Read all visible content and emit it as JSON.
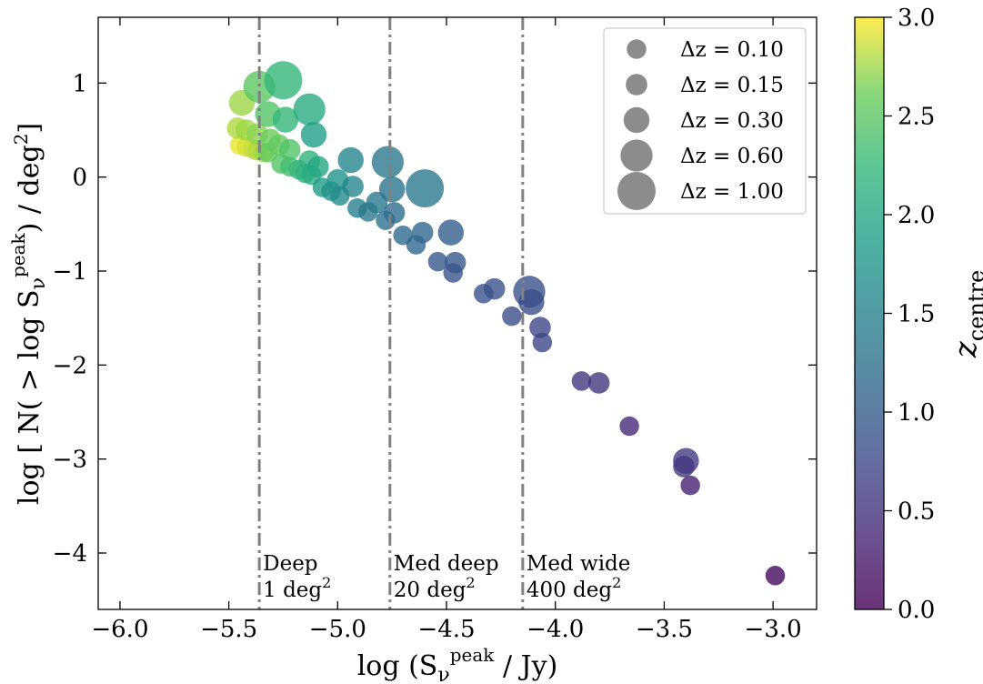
{
  "chart_data": {
    "type": "scatter",
    "xlabel_main": "log (S",
    "xlabel_sub": "ν",
    "xlabel_sup": "peak",
    "xlabel_tail": " / Jy)",
    "ylabel_main": "log [ N( > log S",
    "ylabel_sub": "ν",
    "ylabel_sup": "peak",
    "ylabel_tail": ") / deg",
    "ylabel_exp": "2",
    "ylabel_close": "]",
    "xlim": [
      -6.1,
      -2.8
    ],
    "ylim": [
      -4.6,
      1.7
    ],
    "x_ticks": [
      -6.0,
      -5.5,
      -5.0,
      -4.5,
      -4.0,
      -3.5,
      -3.0
    ],
    "x_tick_labels": [
      "−6.0",
      "−5.5",
      "−5.0",
      "−4.5",
      "−4.0",
      "−3.5",
      "−3.0"
    ],
    "y_ticks": [
      1,
      0,
      -1,
      -2,
      -3,
      -4
    ],
    "y_tick_labels": [
      "1",
      "0",
      "−1",
      "−2",
      "−3",
      "−4"
    ],
    "grid": false,
    "legend_placement": "top-right",
    "legend": [
      {
        "label": "Δz = 0.10",
        "dz": 0.1
      },
      {
        "label": "Δz = 0.15",
        "dz": 0.15
      },
      {
        "label": "Δz = 0.30",
        "dz": 0.3
      },
      {
        "label": "Δz = 0.60",
        "dz": 0.6
      },
      {
        "label": "Δz = 1.00",
        "dz": 1.0
      }
    ],
    "colorbar": {
      "label_main": "z",
      "label_sub": "centre",
      "range": [
        0.0,
        3.0
      ],
      "ticks": [
        0.0,
        0.5,
        1.0,
        1.5,
        2.0,
        2.5,
        3.0
      ],
      "tick_labels": [
        "0.0",
        "0.5",
        "1.0",
        "1.5",
        "2.0",
        "2.5",
        "3.0"
      ],
      "colormap": "viridis"
    },
    "survey_lines": [
      {
        "x": -5.36,
        "name": "Deep",
        "area": "1 deg",
        "exp": "2"
      },
      {
        "x": -4.76,
        "name": "Med deep",
        "area": "20 deg",
        "exp": "2"
      },
      {
        "x": -4.15,
        "name": "Med wide",
        "area": "400 deg",
        "exp": "2"
      }
    ],
    "points": [
      {
        "x": -5.45,
        "y": 0.34,
        "dz": 0.1,
        "z": 2.95
      },
      {
        "x": -5.42,
        "y": 0.32,
        "dz": 0.1,
        "z": 2.9
      },
      {
        "x": -5.39,
        "y": 0.3,
        "dz": 0.1,
        "z": 2.85
      },
      {
        "x": -5.37,
        "y": 0.28,
        "dz": 0.1,
        "z": 2.8
      },
      {
        "x": -5.34,
        "y": 0.26,
        "dz": 0.1,
        "z": 2.75
      },
      {
        "x": -5.46,
        "y": 0.52,
        "dz": 0.15,
        "z": 2.8
      },
      {
        "x": -5.42,
        "y": 0.5,
        "dz": 0.15,
        "z": 2.75
      },
      {
        "x": -5.37,
        "y": 0.46,
        "dz": 0.15,
        "z": 2.7
      },
      {
        "x": -5.44,
        "y": 0.79,
        "dz": 0.3,
        "z": 2.75
      },
      {
        "x": -5.36,
        "y": 0.96,
        "dz": 0.6,
        "z": 2.5
      },
      {
        "x": -5.25,
        "y": 1.03,
        "dz": 1.0,
        "z": 2.25
      },
      {
        "x": -5.32,
        "y": 0.67,
        "dz": 0.3,
        "z": 2.45
      },
      {
        "x": -5.31,
        "y": 0.4,
        "dz": 0.15,
        "z": 2.6
      },
      {
        "x": -5.27,
        "y": 0.34,
        "dz": 0.15,
        "z": 2.55
      },
      {
        "x": -5.22,
        "y": 0.29,
        "dz": 0.15,
        "z": 2.45
      },
      {
        "x": -5.32,
        "y": 0.26,
        "dz": 0.1,
        "z": 2.55
      },
      {
        "x": -5.26,
        "y": 0.14,
        "dz": 0.1,
        "z": 2.45
      },
      {
        "x": -5.22,
        "y": 0.11,
        "dz": 0.1,
        "z": 2.35
      },
      {
        "x": -5.18,
        "y": 0.08,
        "dz": 0.1,
        "z": 2.25
      },
      {
        "x": -5.15,
        "y": 0.04,
        "dz": 0.1,
        "z": 2.15
      },
      {
        "x": -5.13,
        "y": 0.17,
        "dz": 0.15,
        "z": 2.15
      },
      {
        "x": -5.12,
        "y": 0.02,
        "dz": 0.1,
        "z": 2.05
      },
      {
        "x": -5.09,
        "y": 0.11,
        "dz": 0.15,
        "z": 2.0
      },
      {
        "x": -5.24,
        "y": 0.61,
        "dz": 0.3,
        "z": 2.25
      },
      {
        "x": -5.13,
        "y": 0.72,
        "dz": 0.6,
        "z": 2.05
      },
      {
        "x": -5.11,
        "y": 0.45,
        "dz": 0.3,
        "z": 1.9
      },
      {
        "x": -5.07,
        "y": -0.11,
        "dz": 0.1,
        "z": 1.85
      },
      {
        "x": -5.03,
        "y": -0.15,
        "dz": 0.1,
        "z": 1.7
      },
      {
        "x": -5.0,
        "y": -0.03,
        "dz": 0.15,
        "z": 1.75
      },
      {
        "x": -4.99,
        "y": -0.2,
        "dz": 0.1,
        "z": 1.6
      },
      {
        "x": -4.94,
        "y": 0.18,
        "dz": 0.3,
        "z": 1.55
      },
      {
        "x": -4.93,
        "y": -0.1,
        "dz": 0.15,
        "z": 1.55
      },
      {
        "x": -4.91,
        "y": -0.33,
        "dz": 0.1,
        "z": 1.45
      },
      {
        "x": -4.86,
        "y": -0.37,
        "dz": 0.1,
        "z": 1.35
      },
      {
        "x": -4.82,
        "y": -0.27,
        "dz": 0.15,
        "z": 1.4
      },
      {
        "x": -4.78,
        "y": -0.46,
        "dz": 0.1,
        "z": 1.25
      },
      {
        "x": -4.77,
        "y": 0.16,
        "dz": 0.6,
        "z": 1.35
      },
      {
        "x": -4.75,
        "y": -0.13,
        "dz": 0.3,
        "z": 1.3
      },
      {
        "x": -4.74,
        "y": -0.38,
        "dz": 0.15,
        "z": 1.2
      },
      {
        "x": -4.6,
        "y": -0.12,
        "dz": 1.0,
        "z": 1.35
      },
      {
        "x": -4.7,
        "y": -0.62,
        "dz": 0.1,
        "z": 1.15
      },
      {
        "x": -4.64,
        "y": -0.72,
        "dz": 0.1,
        "z": 1.1
      },
      {
        "x": -4.61,
        "y": -0.59,
        "dz": 0.15,
        "z": 1.1
      },
      {
        "x": -4.48,
        "y": -0.59,
        "dz": 0.3,
        "z": 1.0
      },
      {
        "x": -4.54,
        "y": -0.9,
        "dz": 0.1,
        "z": 0.95
      },
      {
        "x": -4.46,
        "y": -0.91,
        "dz": 0.15,
        "z": 0.95
      },
      {
        "x": -4.47,
        "y": -1.02,
        "dz": 0.1,
        "z": 0.9
      },
      {
        "x": -4.33,
        "y": -1.24,
        "dz": 0.1,
        "z": 0.85
      },
      {
        "x": -4.28,
        "y": -1.19,
        "dz": 0.15,
        "z": 0.85
      },
      {
        "x": -4.2,
        "y": -1.48,
        "dz": 0.1,
        "z": 0.8
      },
      {
        "x": -4.12,
        "y": -1.22,
        "dz": 0.6,
        "z": 0.85
      },
      {
        "x": -4.11,
        "y": -1.33,
        "dz": 0.3,
        "z": 0.8
      },
      {
        "x": -4.07,
        "y": -1.6,
        "dz": 0.15,
        "z": 0.7
      },
      {
        "x": -4.06,
        "y": -1.76,
        "dz": 0.1,
        "z": 0.7
      },
      {
        "x": -3.88,
        "y": -2.17,
        "dz": 0.1,
        "z": 0.55
      },
      {
        "x": -3.8,
        "y": -2.19,
        "dz": 0.15,
        "z": 0.55
      },
      {
        "x": -3.66,
        "y": -2.65,
        "dz": 0.1,
        "z": 0.4
      },
      {
        "x": -3.4,
        "y": -3.02,
        "dz": 0.3,
        "z": 0.6
      },
      {
        "x": -3.41,
        "y": -3.08,
        "dz": 0.15,
        "z": 0.55
      },
      {
        "x": -3.38,
        "y": -3.28,
        "dz": 0.1,
        "z": 0.3
      },
      {
        "x": -2.99,
        "y": -4.24,
        "dz": 0.1,
        "z": 0.1
      }
    ]
  }
}
